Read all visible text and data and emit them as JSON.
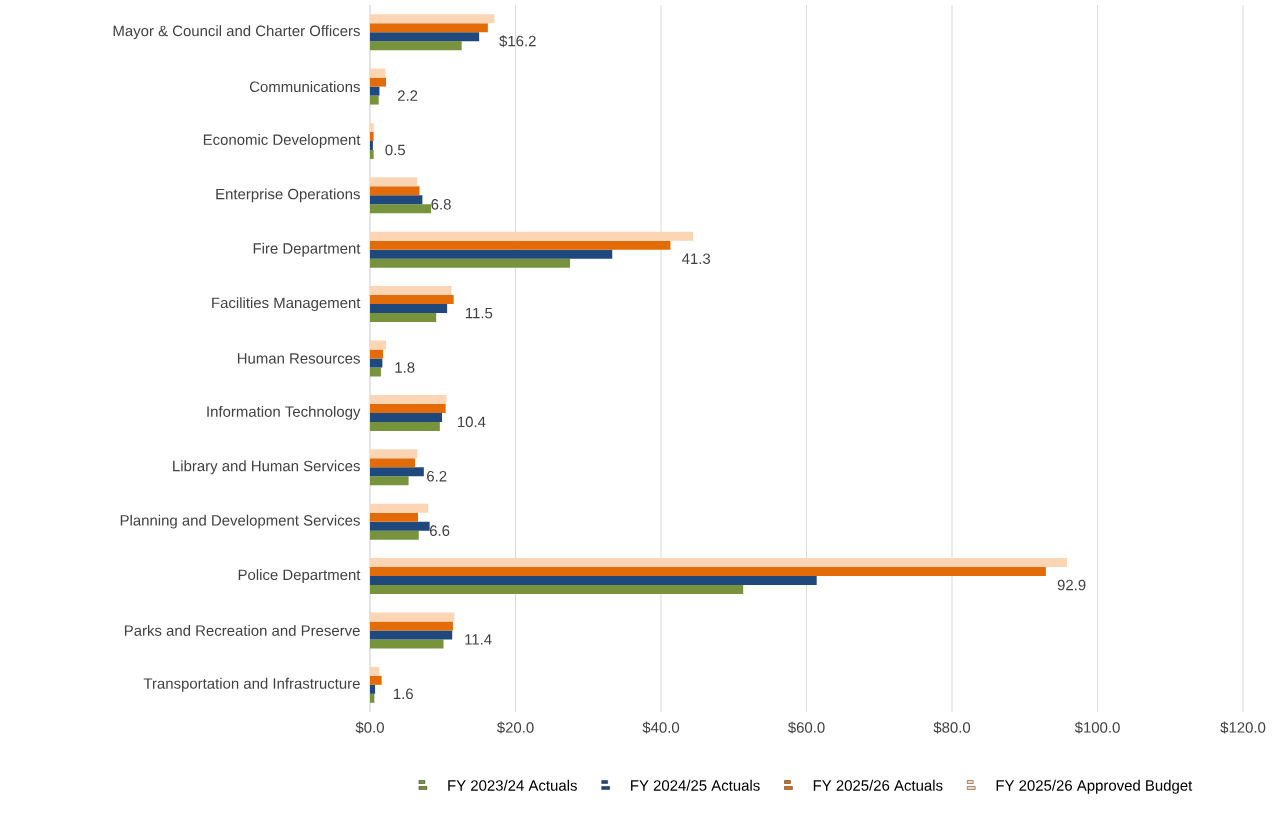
{
  "chart_data": {
    "type": "bar",
    "orientation": "horizontal",
    "categories": [
      "Mayor & Council and Charter Officers",
      "Communications",
      "Economic Development",
      "Enterprise Operations",
      "Fire Department",
      "Facilities Management",
      "Human Resources",
      "Information Technology",
      "Library and Human Services",
      "Planning and Development Services",
      "Police Department",
      "Parks and Recreation and Preserve",
      "Transportation and Infrastructure"
    ],
    "series": [
      {
        "name": "FY 2023/24 Actuals",
        "color": "#77933c",
        "values": [
          12.6,
          1.2,
          0.5,
          8.4,
          27.5,
          9.1,
          1.5,
          9.6,
          5.3,
          6.7,
          51.3,
          10.1,
          0.6
        ]
      },
      {
        "name": "FY 2024/25 Actuals",
        "color": "#1f497d",
        "values": [
          15.0,
          1.3,
          0.4,
          7.2,
          33.3,
          10.6,
          1.7,
          9.9,
          7.4,
          8.2,
          61.4,
          11.3,
          0.7
        ]
      },
      {
        "name": "FY 2025/26  Actuals",
        "color": "#e36c09",
        "values": [
          16.2,
          2.2,
          0.5,
          6.8,
          41.3,
          11.5,
          1.8,
          10.4,
          6.2,
          6.6,
          92.9,
          11.4,
          1.6
        ],
        "value_labels": [
          "$16.2",
          "2.2",
          "0.5",
          "6.8",
          "41.3",
          "11.5",
          "1.8",
          "10.4",
          "6.2",
          "6.6",
          "92.9",
          "11.4",
          "1.6"
        ]
      },
      {
        "name": "FY 2025/26 Approved Budget",
        "color": "#fcd5b5",
        "values": [
          17.1,
          2.1,
          0.5,
          6.5,
          44.4,
          11.2,
          2.2,
          10.5,
          6.5,
          8.0,
          95.8,
          11.6,
          1.3
        ]
      }
    ],
    "xlim": [
      0,
      120
    ],
    "xticks": [
      {
        "value": 0,
        "label": "$0.0"
      },
      {
        "value": 20,
        "label": "$20.0"
      },
      {
        "value": 40,
        "label": "$40.0"
      },
      {
        "value": 60,
        "label": "$60.0"
      },
      {
        "value": 80,
        "label": "$80.0"
      },
      {
        "value": 100,
        "label": "$100.0"
      },
      {
        "value": 120,
        "label": "$120.0"
      }
    ],
    "grid": "x",
    "legend": "bottom"
  }
}
